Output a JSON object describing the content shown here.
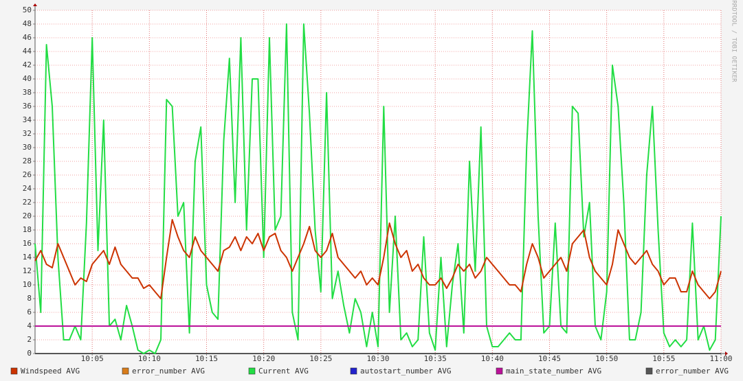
{
  "chart_data": {
    "type": "line",
    "side_text": "RRDTOOL / TOBI OETIKER",
    "x": [
      0,
      0.5,
      1,
      1.5,
      2,
      2.5,
      3,
      3.5,
      4,
      4.5,
      5,
      5.5,
      6,
      6.5,
      7,
      7.5,
      8,
      8.5,
      9,
      9.5,
      10,
      10.5,
      11,
      11.5,
      12,
      12.5,
      13,
      13.5,
      14,
      14.5,
      15,
      15.5,
      16,
      16.5,
      17,
      17.5,
      18,
      18.5,
      19,
      19.5,
      20,
      20.5,
      21,
      21.5,
      22,
      22.5,
      23,
      23.5,
      24,
      24.5,
      25,
      25.5,
      26,
      26.5,
      27,
      27.5,
      28,
      28.5,
      29,
      29.5,
      30,
      30.5,
      31,
      31.5,
      32,
      32.5,
      33,
      33.5,
      34,
      34.5,
      35,
      35.5,
      36,
      36.5,
      37,
      37.5,
      38,
      38.5,
      39,
      39.5,
      40,
      40.5,
      41,
      41.5,
      42,
      42.5,
      43,
      43.5,
      44,
      44.5,
      45,
      45.5,
      46,
      46.5,
      47,
      47.5,
      48,
      48.5,
      49,
      49.5,
      50,
      50.5,
      51,
      51.5,
      52,
      52.5,
      53,
      53.5,
      54,
      54.5,
      55,
      55.5,
      56,
      56.5,
      57,
      57.5,
      58,
      58.5,
      59,
      59.5,
      60
    ],
    "xlim": [
      0,
      60
    ],
    "xticks": [
      {
        "value": 5,
        "label": "10:05"
      },
      {
        "value": 10,
        "label": "10:10"
      },
      {
        "value": 15,
        "label": "10:15"
      },
      {
        "value": 20,
        "label": "10:20"
      },
      {
        "value": 25,
        "label": "10:25"
      },
      {
        "value": 30,
        "label": "10:30"
      },
      {
        "value": 35,
        "label": "10:35"
      },
      {
        "value": 40,
        "label": "10:40"
      },
      {
        "value": 45,
        "label": "10:45"
      },
      {
        "value": 50,
        "label": "10:50"
      },
      {
        "value": 55,
        "label": "10:55"
      },
      {
        "value": 60,
        "label": "11:00"
      }
    ],
    "ylim": [
      0,
      50
    ],
    "yticks": [
      0,
      2,
      4,
      6,
      8,
      10,
      12,
      14,
      16,
      18,
      20,
      22,
      24,
      26,
      28,
      30,
      32,
      34,
      36,
      38,
      40,
      42,
      44,
      46,
      48,
      50
    ],
    "grid": true,
    "series": [
      {
        "name": "Windspeed AVG",
        "color": "#cc3300",
        "values": [
          13.5,
          15,
          13,
          12.5,
          16,
          14,
          12,
          10,
          11,
          10.5,
          13,
          14,
          15,
          13,
          15.5,
          13,
          12,
          11,
          11,
          9.5,
          10,
          9,
          8,
          14,
          19.5,
          17,
          15,
          14,
          17,
          15,
          14,
          13,
          12,
          15,
          15.5,
          17,
          15,
          17,
          16,
          17.5,
          15,
          17,
          17.5,
          15,
          14,
          12,
          14,
          16,
          18.5,
          15,
          14,
          15,
          17.5,
          14,
          13,
          12,
          11,
          12,
          10,
          11,
          10,
          14,
          19,
          16,
          14,
          15,
          12,
          13,
          11,
          10,
          10,
          11,
          9.5,
          11,
          13,
          12,
          13,
          11,
          12,
          14,
          13,
          12,
          11,
          10,
          10,
          9,
          13,
          16,
          14,
          11,
          12,
          13,
          14,
          12,
          16,
          17,
          18,
          14,
          12,
          11,
          10,
          13,
          18,
          16,
          14,
          13,
          14,
          15,
          13,
          12,
          10,
          11,
          11,
          9,
          9,
          12,
          10,
          9,
          8,
          9,
          12
        ]
      },
      {
        "name": "error_number AVG",
        "color": "#d87c1a",
        "values": [
          0,
          0,
          0,
          0,
          0,
          0,
          0,
          0,
          0,
          0,
          0,
          0,
          0,
          0,
          0,
          0,
          0,
          0,
          0,
          0,
          0,
          0,
          0,
          0,
          0,
          0,
          0,
          0,
          0,
          0,
          0,
          0,
          0,
          0,
          0,
          0,
          0,
          0,
          0,
          0,
          0,
          0,
          0,
          0,
          0,
          0,
          0,
          0,
          0,
          0,
          0,
          0,
          0,
          0,
          0,
          0,
          0,
          0,
          0,
          0,
          0,
          0,
          0,
          0,
          0,
          0,
          0,
          0,
          0,
          0,
          0,
          0,
          0,
          0,
          0,
          0,
          0,
          0,
          0,
          0,
          0,
          0,
          0,
          0,
          0,
          0,
          0,
          0,
          0,
          0,
          0,
          0,
          0,
          0,
          0,
          0,
          0,
          0,
          0,
          0,
          0,
          0,
          0,
          0,
          0,
          0,
          0,
          0,
          0,
          0,
          0,
          0,
          0,
          0,
          0,
          0,
          0,
          0,
          0,
          0,
          0
        ]
      },
      {
        "name": "Current AVG",
        "color": "#22dd44",
        "values": [
          16,
          6,
          45,
          36,
          14,
          2,
          2,
          4,
          2,
          19,
          46,
          15,
          34,
          4,
          5,
          2,
          7,
          4,
          0.5,
          0,
          0.5,
          0,
          2,
          37,
          36,
          20,
          22,
          3,
          28,
          33,
          10,
          6,
          5,
          31,
          43,
          22,
          46,
          18,
          40,
          40,
          14,
          46,
          18,
          20,
          48,
          6,
          2,
          48,
          35,
          18,
          9,
          38,
          8,
          12,
          7,
          3,
          8,
          6,
          1,
          6,
          1,
          36,
          6,
          20,
          2,
          3,
          1,
          2,
          17,
          3,
          0.5,
          14,
          1,
          10,
          16,
          3,
          28,
          12,
          33,
          4,
          1,
          1,
          2,
          3,
          2,
          2,
          30,
          47,
          20,
          3,
          4,
          19,
          4,
          3,
          36,
          35,
          17,
          22,
          4,
          2,
          9,
          42,
          36,
          22,
          2,
          2,
          6,
          26,
          36,
          18,
          3,
          1,
          2,
          1,
          2,
          19,
          2,
          4,
          0.5,
          2,
          20
        ]
      },
      {
        "name": "autostart_number AVG",
        "color": "#2222cc",
        "values": [
          0,
          0,
          0,
          0,
          0,
          0,
          0,
          0,
          0,
          0,
          0,
          0,
          0,
          0,
          0,
          0,
          0,
          0,
          0,
          0,
          0,
          0,
          0,
          0,
          0,
          0,
          0,
          0,
          0,
          0,
          0,
          0,
          0,
          0,
          0,
          0,
          0,
          0,
          0,
          0,
          0,
          0,
          0,
          0,
          0,
          0,
          0,
          0,
          0,
          0,
          0,
          0,
          0,
          0,
          0,
          0,
          0,
          0,
          0,
          0,
          0,
          0,
          0,
          0,
          0,
          0,
          0,
          0,
          0,
          0,
          0,
          0,
          0,
          0,
          0,
          0,
          0,
          0,
          0,
          0,
          0,
          0,
          0,
          0,
          0,
          0,
          0,
          0,
          0,
          0,
          0,
          0,
          0,
          0,
          0,
          0,
          0,
          0,
          0,
          0,
          0,
          0,
          0,
          0,
          0,
          0,
          0,
          0,
          0,
          0,
          0,
          0,
          0,
          0,
          0,
          0,
          0,
          0,
          0,
          0,
          0
        ]
      },
      {
        "name": "main_state_number AVG",
        "color": "#bb1199",
        "values": [
          4,
          4,
          4,
          4,
          4,
          4,
          4,
          4,
          4,
          4,
          4,
          4,
          4,
          4,
          4,
          4,
          4,
          4,
          4,
          4,
          4,
          4,
          4,
          4,
          4,
          4,
          4,
          4,
          4,
          4,
          4,
          4,
          4,
          4,
          4,
          4,
          4,
          4,
          4,
          4,
          4,
          4,
          4,
          4,
          4,
          4,
          4,
          4,
          4,
          4,
          4,
          4,
          4,
          4,
          4,
          4,
          4,
          4,
          4,
          4,
          4,
          4,
          4,
          4,
          4,
          4,
          4,
          4,
          4,
          4,
          4,
          4,
          4,
          4,
          4,
          4,
          4,
          4,
          4,
          4,
          4,
          4,
          4,
          4,
          4,
          4,
          4,
          4,
          4,
          4,
          4,
          4,
          4,
          4,
          4,
          4,
          4,
          4,
          4,
          4,
          4,
          4,
          4,
          4,
          4,
          4,
          4,
          4,
          4,
          4,
          4,
          4,
          4,
          4,
          4,
          4,
          4,
          4,
          4,
          4,
          4
        ]
      },
      {
        "name": "error_number AVG",
        "color": "#555555",
        "values": [
          0,
          0,
          0,
          0,
          0,
          0,
          0,
          0,
          0,
          0,
          0,
          0,
          0,
          0,
          0,
          0,
          0,
          0,
          0,
          0,
          0,
          0,
          0,
          0,
          0,
          0,
          0,
          0,
          0,
          0,
          0,
          0,
          0,
          0,
          0,
          0,
          0,
          0,
          0,
          0,
          0,
          0,
          0,
          0,
          0,
          0,
          0,
          0,
          0,
          0,
          0,
          0,
          0,
          0,
          0,
          0,
          0,
          0,
          0,
          0,
          0,
          0,
          0,
          0,
          0,
          0,
          0,
          0,
          0,
          0,
          0,
          0,
          0,
          0,
          0,
          0,
          0,
          0,
          0,
          0,
          0,
          0,
          0,
          0,
          0,
          0,
          0,
          0,
          0,
          0,
          0,
          0,
          0,
          0,
          0,
          0,
          0,
          0,
          0,
          0,
          0,
          0,
          0,
          0,
          0,
          0,
          0,
          0,
          0,
          0,
          0,
          0,
          0,
          0,
          0,
          0,
          0,
          0,
          0,
          0,
          0
        ]
      }
    ]
  }
}
